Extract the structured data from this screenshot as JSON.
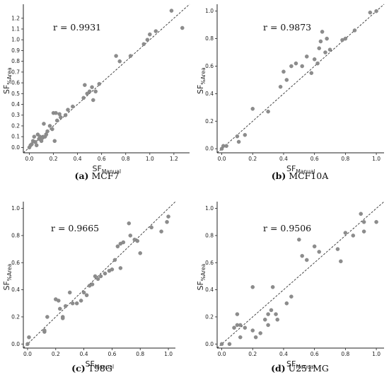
{
  "chart_data": [
    {
      "type": "scatter",
      "caption_letter": "(a)",
      "caption_name": "MCF7",
      "r_label": "r = 0.9931",
      "xlabel": {
        "main": "SF",
        "sub": "Manual"
      },
      "ylabel": {
        "main": "SF",
        "sub": "%Area"
      },
      "xlim": [
        -0.05,
        1.33
      ],
      "ylim": [
        -0.05,
        1.33
      ],
      "xticks": [
        0.0,
        0.2,
        0.4,
        0.6,
        0.8,
        1.0,
        1.2
      ],
      "yticks": [
        0.0,
        0.1,
        0.2,
        0.3,
        0.4,
        0.5,
        0.6,
        0.7,
        0.8,
        0.9,
        1.0,
        1.1,
        1.2
      ],
      "reference_line": "y = x",
      "points": [
        [
          0.0,
          0.0
        ],
        [
          0.01,
          0.02
        ],
        [
          0.02,
          0.03
        ],
        [
          0.03,
          0.06
        ],
        [
          0.04,
          0.1
        ],
        [
          0.05,
          0.05
        ],
        [
          0.06,
          0.02
        ],
        [
          0.07,
          0.12
        ],
        [
          0.08,
          0.08
        ],
        [
          0.09,
          0.1
        ],
        [
          0.1,
          0.06
        ],
        [
          0.11,
          0.09
        ],
        [
          0.12,
          0.22
        ],
        [
          0.13,
          0.1
        ],
        [
          0.14,
          0.12
        ],
        [
          0.15,
          0.15
        ],
        [
          0.17,
          0.2
        ],
        [
          0.19,
          0.17
        ],
        [
          0.2,
          0.32
        ],
        [
          0.21,
          0.06
        ],
        [
          0.22,
          0.32
        ],
        [
          0.23,
          0.25
        ],
        [
          0.25,
          0.31
        ],
        [
          0.26,
          0.28
        ],
        [
          0.3,
          0.3
        ],
        [
          0.32,
          0.35
        ],
        [
          0.36,
          0.38
        ],
        [
          0.45,
          0.46
        ],
        [
          0.46,
          0.58
        ],
        [
          0.48,
          0.5
        ],
        [
          0.5,
          0.52
        ],
        [
          0.52,
          0.56
        ],
        [
          0.53,
          0.44
        ],
        [
          0.55,
          0.52
        ],
        [
          0.58,
          0.59
        ],
        [
          0.72,
          0.85
        ],
        [
          0.75,
          0.8
        ],
        [
          0.84,
          0.85
        ],
        [
          0.95,
          0.96
        ],
        [
          0.98,
          1.0
        ],
        [
          1.0,
          1.05
        ],
        [
          1.05,
          1.08
        ],
        [
          1.18,
          1.27
        ],
        [
          1.27,
          1.11
        ]
      ]
    },
    {
      "type": "scatter",
      "caption_letter": "(b)",
      "caption_name": "MCF10A",
      "r_label": "r = 0.9873",
      "xlabel": {
        "main": "SF",
        "sub": "Manual"
      },
      "ylabel": {
        "main": "SF",
        "sub": "%Area"
      },
      "xlim": [
        -0.03,
        1.05
      ],
      "ylim": [
        -0.03,
        1.05
      ],
      "xticks": [
        0.0,
        0.2,
        0.4,
        0.6,
        0.8,
        1.0
      ],
      "yticks": [
        0.0,
        0.2,
        0.4,
        0.6,
        0.8,
        1.0
      ],
      "reference_line": "y = x",
      "points": [
        [
          0.0,
          0.0
        ],
        [
          0.01,
          0.02
        ],
        [
          0.03,
          0.02
        ],
        [
          0.1,
          0.09
        ],
        [
          0.11,
          0.05
        ],
        [
          0.15,
          0.1
        ],
        [
          0.2,
          0.29
        ],
        [
          0.3,
          0.27
        ],
        [
          0.38,
          0.45
        ],
        [
          0.4,
          0.56
        ],
        [
          0.42,
          0.5
        ],
        [
          0.45,
          0.6
        ],
        [
          0.48,
          0.62
        ],
        [
          0.52,
          0.6
        ],
        [
          0.55,
          0.67
        ],
        [
          0.58,
          0.55
        ],
        [
          0.6,
          0.65
        ],
        [
          0.62,
          0.62
        ],
        [
          0.63,
          0.73
        ],
        [
          0.64,
          0.78
        ],
        [
          0.65,
          0.85
        ],
        [
          0.67,
          0.7
        ],
        [
          0.68,
          0.8
        ],
        [
          0.7,
          0.72
        ],
        [
          0.78,
          0.79
        ],
        [
          0.8,
          0.8
        ],
        [
          0.86,
          0.86
        ],
        [
          0.96,
          0.99
        ],
        [
          1.0,
          1.0
        ]
      ]
    },
    {
      "type": "scatter",
      "caption_letter": "(c)",
      "caption_name": "T98G",
      "r_label": "r = 0.9665",
      "xlabel": {
        "main": "SF",
        "sub": "Manual"
      },
      "ylabel": {
        "main": "SF",
        "sub": "%Area"
      },
      "xlim": [
        -0.03,
        1.05
      ],
      "ylim": [
        -0.03,
        1.05
      ],
      "xticks": [
        0.0,
        0.2,
        0.4,
        0.6,
        0.8,
        1.0
      ],
      "yticks": [
        0.0,
        0.2,
        0.4,
        0.6,
        0.8,
        1.0
      ],
      "reference_line": "y = x",
      "points": [
        [
          0.0,
          0.0
        ],
        [
          0.01,
          0.05
        ],
        [
          0.12,
          0.09
        ],
        [
          0.12,
          0.1
        ],
        [
          0.14,
          0.2
        ],
        [
          0.2,
          0.33
        ],
        [
          0.22,
          0.32
        ],
        [
          0.23,
          0.26
        ],
        [
          0.25,
          0.2
        ],
        [
          0.25,
          0.19
        ],
        [
          0.27,
          0.28
        ],
        [
          0.3,
          0.38
        ],
        [
          0.32,
          0.3
        ],
        [
          0.35,
          0.3
        ],
        [
          0.38,
          0.32
        ],
        [
          0.4,
          0.38
        ],
        [
          0.42,
          0.36
        ],
        [
          0.44,
          0.43
        ],
        [
          0.46,
          0.44
        ],
        [
          0.48,
          0.5
        ],
        [
          0.5,
          0.48
        ],
        [
          0.52,
          0.5
        ],
        [
          0.55,
          0.52
        ],
        [
          0.58,
          0.54
        ],
        [
          0.6,
          0.55
        ],
        [
          0.62,
          0.62
        ],
        [
          0.64,
          0.72
        ],
        [
          0.66,
          0.74
        ],
        [
          0.66,
          0.56
        ],
        [
          0.68,
          0.75
        ],
        [
          0.72,
          0.89
        ],
        [
          0.73,
          0.8
        ],
        [
          0.76,
          0.77
        ],
        [
          0.78,
          0.76
        ],
        [
          0.8,
          0.67
        ],
        [
          0.88,
          0.86
        ],
        [
          0.95,
          0.83
        ],
        [
          0.99,
          0.9
        ],
        [
          1.0,
          0.94
        ]
      ]
    },
    {
      "type": "scatter",
      "caption_letter": "(d)",
      "caption_name": "U251MG",
      "r_label": "r = 0.9506",
      "xlabel": {
        "main": "SF",
        "sub": "Manual"
      },
      "ylabel": {
        "main": "SF",
        "sub": "%Area"
      },
      "xlim": [
        -0.03,
        1.05
      ],
      "ylim": [
        -0.03,
        1.05
      ],
      "xticks": [
        0.0,
        0.2,
        0.4,
        0.6,
        0.8,
        1.0
      ],
      "yticks": [
        0.0,
        0.2,
        0.4,
        0.6,
        0.8,
        1.0
      ],
      "reference_line": "y = x",
      "points": [
        [
          0.0,
          0.0
        ],
        [
          0.05,
          0.0
        ],
        [
          0.08,
          0.12
        ],
        [
          0.1,
          0.22
        ],
        [
          0.1,
          0.14
        ],
        [
          0.12,
          0.14
        ],
        [
          0.12,
          0.05
        ],
        [
          0.15,
          0.12
        ],
        [
          0.2,
          0.42
        ],
        [
          0.2,
          0.1
        ],
        [
          0.22,
          0.05
        ],
        [
          0.25,
          0.08
        ],
        [
          0.28,
          0.18
        ],
        [
          0.3,
          0.22
        ],
        [
          0.3,
          0.14
        ],
        [
          0.32,
          0.25
        ],
        [
          0.33,
          0.42
        ],
        [
          0.35,
          0.22
        ],
        [
          0.36,
          0.18
        ],
        [
          0.42,
          0.3
        ],
        [
          0.45,
          0.35
        ],
        [
          0.5,
          0.77
        ],
        [
          0.52,
          0.65
        ],
        [
          0.55,
          0.62
        ],
        [
          0.6,
          0.72
        ],
        [
          0.63,
          0.68
        ],
        [
          0.75,
          0.7
        ],
        [
          0.77,
          0.61
        ],
        [
          0.8,
          0.82
        ],
        [
          0.85,
          0.8
        ],
        [
          0.9,
          0.96
        ],
        [
          0.92,
          0.9
        ],
        [
          0.92,
          0.83
        ],
        [
          1.0,
          0.9
        ]
      ]
    }
  ]
}
